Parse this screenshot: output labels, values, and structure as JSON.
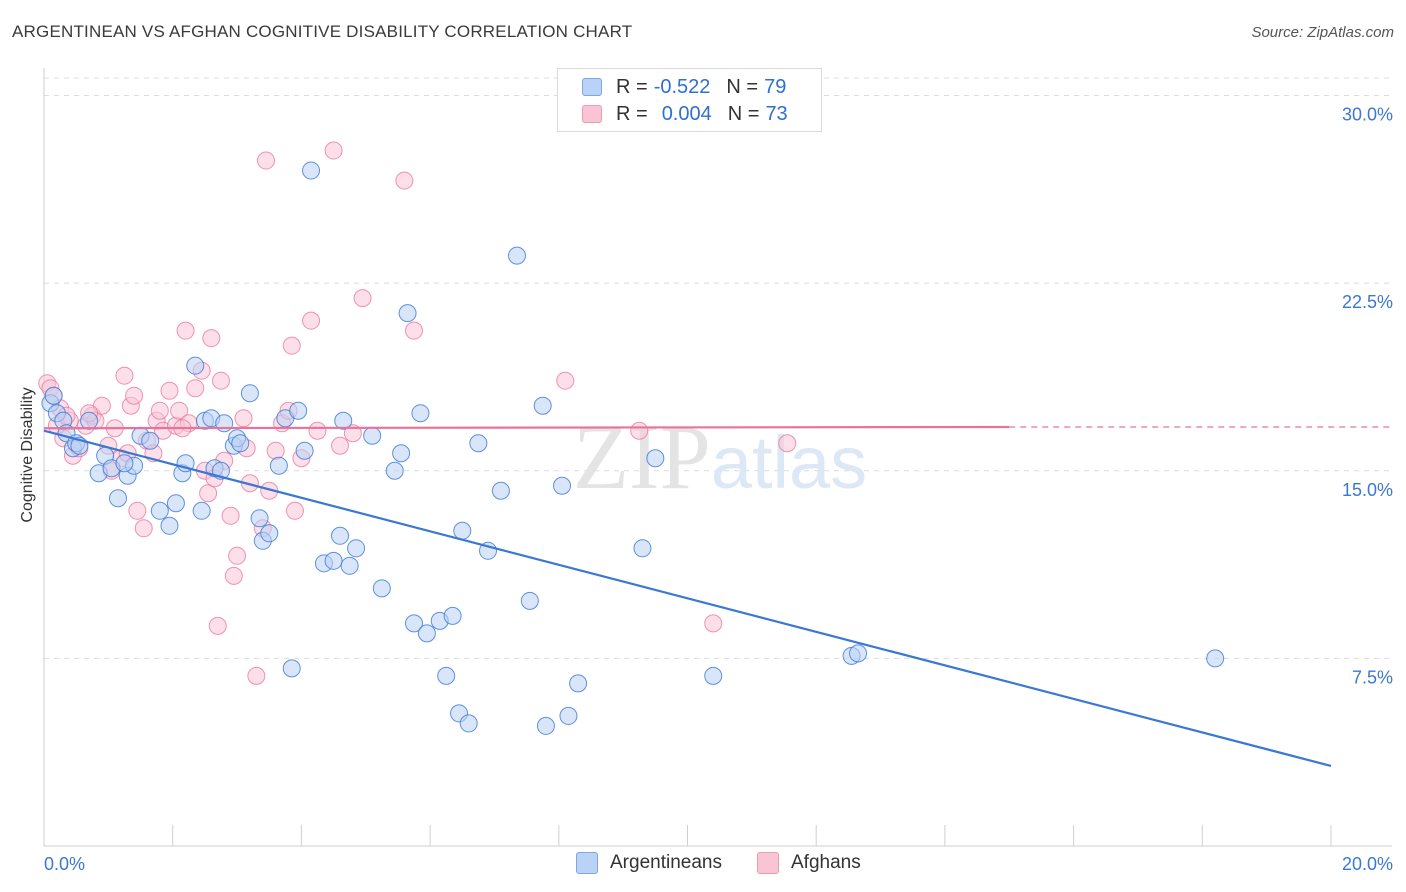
{
  "title": "ARGENTINEAN VS AFGHAN COGNITIVE DISABILITY CORRELATION CHART",
  "source": "Source: ZipAtlas.com",
  "colors": {
    "blue": "#3a78d4",
    "blue_fill": "#b9d2f5",
    "pink": "#e8739a",
    "pink_fill": "#f9c5d5",
    "tick": "#3b78d0"
  },
  "legend": {
    "rows": [
      {
        "r_label": "R =",
        "r_value": "-0.522",
        "n_label": "N =",
        "n_value": "79"
      },
      {
        "r_label": "R =",
        "r_value": "0.004",
        "n_label": "N =",
        "n_value": "73"
      }
    ]
  },
  "bottom_legend": {
    "series1": "Argentineans",
    "series2": "Afghans"
  },
  "chart_data": {
    "type": "scatter",
    "title": "ARGENTINEAN VS AFGHAN COGNITIVE DISABILITY CORRELATION CHART",
    "xlabel": "",
    "ylabel": "Cognitive Disability",
    "xlim": [
      0,
      20
    ],
    "ylim": [
      0,
      30.7
    ],
    "x_tick_labels": [
      "0.0%",
      "20.0%"
    ],
    "y_ticks": [
      7.5,
      15.0,
      22.5,
      30.0
    ],
    "y_tick_labels": [
      "7.5%",
      "15.0%",
      "22.5%",
      "30.0%"
    ],
    "watermark": "ZIPatlas",
    "series": [
      {
        "name": "Argentineans",
        "R": -0.522,
        "N": 79,
        "trend": {
          "x0": 0.0,
          "y0": 16.6,
          "x1": 20.0,
          "y1": 3.2
        },
        "points": [
          [
            0.1,
            17.7
          ],
          [
            0.15,
            18.0
          ],
          [
            0.2,
            17.3
          ],
          [
            0.3,
            17.0
          ],
          [
            0.35,
            16.5
          ],
          [
            0.45,
            15.9
          ],
          [
            0.5,
            16.1
          ],
          [
            0.7,
            17.0
          ],
          [
            0.85,
            14.9
          ],
          [
            0.95,
            15.6
          ],
          [
            1.05,
            15.1
          ],
          [
            1.15,
            13.9
          ],
          [
            1.3,
            14.8
          ],
          [
            1.4,
            15.2
          ],
          [
            1.5,
            16.4
          ],
          [
            1.65,
            16.2
          ],
          [
            1.8,
            13.4
          ],
          [
            1.95,
            12.8
          ],
          [
            2.05,
            13.7
          ],
          [
            2.15,
            14.9
          ],
          [
            2.2,
            15.3
          ],
          [
            2.35,
            19.2
          ],
          [
            2.45,
            13.4
          ],
          [
            2.5,
            17.0
          ],
          [
            2.6,
            17.1
          ],
          [
            2.65,
            15.1
          ],
          [
            2.8,
            16.9
          ],
          [
            2.95,
            16.0
          ],
          [
            3.0,
            16.3
          ],
          [
            3.2,
            18.1
          ],
          [
            3.35,
            13.1
          ],
          [
            3.4,
            12.2
          ],
          [
            3.5,
            12.5
          ],
          [
            3.65,
            15.2
          ],
          [
            3.75,
            17.1
          ],
          [
            3.85,
            7.1
          ],
          [
            3.95,
            17.4
          ],
          [
            4.15,
            27.0
          ],
          [
            4.35,
            11.3
          ],
          [
            4.5,
            11.4
          ],
          [
            4.6,
            12.4
          ],
          [
            4.65,
            17.0
          ],
          [
            4.75,
            11.2
          ],
          [
            4.85,
            11.9
          ],
          [
            5.25,
            10.3
          ],
          [
            5.45,
            15.0
          ],
          [
            5.55,
            15.7
          ],
          [
            5.65,
            21.3
          ],
          [
            5.75,
            8.9
          ],
          [
            5.85,
            17.3
          ],
          [
            5.95,
            8.5
          ],
          [
            6.15,
            9.0
          ],
          [
            6.25,
            6.8
          ],
          [
            6.35,
            9.2
          ],
          [
            6.45,
            5.3
          ],
          [
            6.5,
            12.6
          ],
          [
            6.6,
            4.9
          ],
          [
            6.75,
            16.1
          ],
          [
            6.9,
            11.8
          ],
          [
            7.1,
            14.2
          ],
          [
            7.35,
            23.6
          ],
          [
            7.55,
            9.8
          ],
          [
            7.75,
            17.6
          ],
          [
            7.8,
            4.8
          ],
          [
            8.05,
            14.4
          ],
          [
            8.15,
            5.2
          ],
          [
            8.3,
            6.5
          ],
          [
            9.3,
            11.9
          ],
          [
            9.5,
            15.5
          ],
          [
            10.4,
            6.8
          ],
          [
            12.55,
            7.6
          ],
          [
            12.65,
            7.7
          ],
          [
            18.2,
            7.5
          ],
          [
            0.55,
            16.0
          ],
          [
            1.25,
            15.3
          ],
          [
            2.75,
            15.0
          ],
          [
            3.05,
            16.1
          ],
          [
            4.05,
            15.8
          ],
          [
            5.1,
            16.4
          ]
        ]
      },
      {
        "name": "Afghans",
        "R": 0.004,
        "N": 73,
        "trend": {
          "x0": 0.0,
          "y0": 16.7,
          "x1": 15.0,
          "y1": 16.75,
          "dash_to": 20.0
        },
        "points": [
          [
            0.05,
            18.5
          ],
          [
            0.1,
            18.3
          ],
          [
            0.15,
            18.0
          ],
          [
            0.25,
            17.5
          ],
          [
            0.3,
            16.3
          ],
          [
            0.4,
            17.0
          ],
          [
            0.45,
            15.6
          ],
          [
            0.55,
            15.9
          ],
          [
            0.65,
            16.8
          ],
          [
            0.75,
            17.2
          ],
          [
            0.8,
            17.0
          ],
          [
            0.9,
            17.6
          ],
          [
            1.0,
            16.0
          ],
          [
            1.05,
            15.0
          ],
          [
            1.1,
            16.7
          ],
          [
            1.2,
            15.5
          ],
          [
            1.25,
            18.8
          ],
          [
            1.35,
            17.6
          ],
          [
            1.4,
            18.0
          ],
          [
            1.45,
            13.4
          ],
          [
            1.55,
            12.7
          ],
          [
            1.6,
            16.2
          ],
          [
            1.7,
            15.7
          ],
          [
            1.75,
            17.0
          ],
          [
            1.85,
            16.6
          ],
          [
            1.95,
            18.2
          ],
          [
            2.05,
            16.8
          ],
          [
            2.1,
            17.4
          ],
          [
            2.2,
            20.6
          ],
          [
            2.25,
            16.9
          ],
          [
            2.35,
            18.3
          ],
          [
            2.45,
            19.0
          ],
          [
            2.5,
            15.0
          ],
          [
            2.55,
            14.1
          ],
          [
            2.6,
            20.3
          ],
          [
            2.65,
            14.7
          ],
          [
            2.7,
            8.8
          ],
          [
            2.8,
            15.4
          ],
          [
            2.9,
            13.2
          ],
          [
            2.95,
            10.8
          ],
          [
            3.0,
            11.6
          ],
          [
            3.1,
            17.1
          ],
          [
            3.2,
            14.5
          ],
          [
            3.3,
            6.8
          ],
          [
            3.4,
            12.7
          ],
          [
            3.5,
            14.2
          ],
          [
            3.6,
            15.8
          ],
          [
            3.7,
            16.9
          ],
          [
            3.8,
            17.4
          ],
          [
            3.85,
            20.0
          ],
          [
            3.9,
            13.4
          ],
          [
            4.0,
            15.5
          ],
          [
            4.15,
            21.0
          ],
          [
            4.25,
            16.6
          ],
          [
            4.5,
            27.8
          ],
          [
            4.6,
            16.0
          ],
          [
            4.8,
            16.5
          ],
          [
            4.95,
            21.9
          ],
          [
            5.6,
            26.6
          ],
          [
            5.75,
            20.6
          ],
          [
            8.1,
            18.6
          ],
          [
            9.25,
            16.6
          ],
          [
            10.4,
            8.9
          ],
          [
            11.55,
            16.1
          ],
          [
            3.45,
            27.4
          ],
          [
            0.2,
            16.8
          ],
          [
            0.35,
            17.2
          ],
          [
            0.7,
            17.3
          ],
          [
            1.3,
            15.7
          ],
          [
            1.8,
            17.4
          ],
          [
            2.15,
            16.7
          ],
          [
            2.75,
            18.6
          ],
          [
            3.15,
            15.9
          ]
        ]
      }
    ]
  }
}
